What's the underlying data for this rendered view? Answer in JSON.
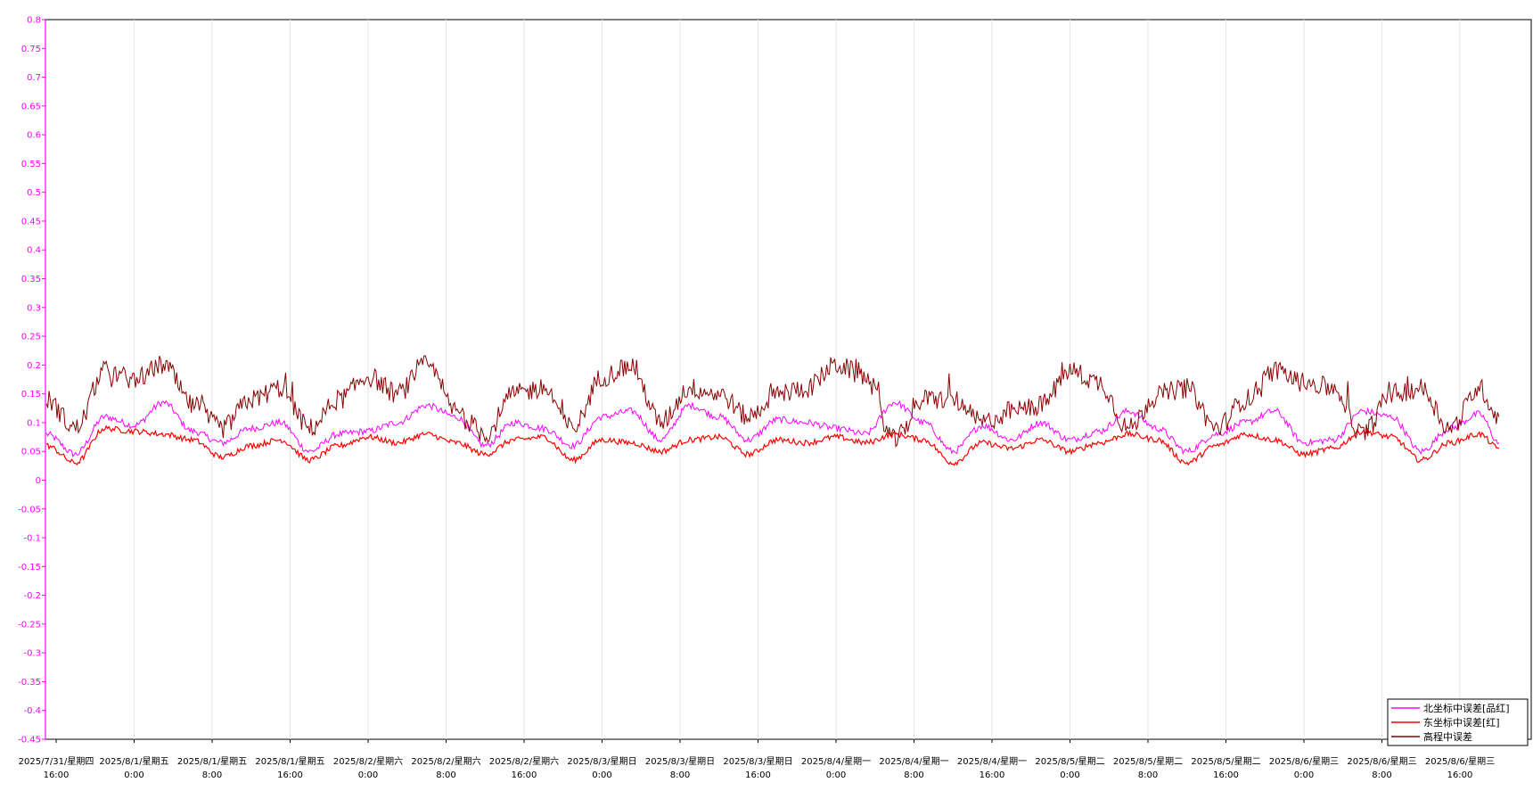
{
  "chart_data": {
    "type": "line",
    "ylim": [
      -0.45,
      0.8
    ],
    "yticks": [
      "0.8",
      "0.75",
      "0.7",
      "0.65",
      "0.6",
      "0.55",
      "0.5",
      "0.45",
      "0.4",
      "0.35",
      "0.3",
      "0.25",
      "0.2",
      "0.15",
      "0.1",
      "0.05",
      "0",
      "-0.05",
      "-0.1",
      "-0.15",
      "-0.2",
      "-0.25",
      "-0.3",
      "-0.35",
      "-0.4",
      "-0.45"
    ],
    "xticks": [
      {
        "date": "2025/7/31/星期四",
        "time": "16:00"
      },
      {
        "date": "2025/8/1/星期五",
        "time": "0:00"
      },
      {
        "date": "2025/8/1/星期五",
        "time": "8:00"
      },
      {
        "date": "2025/8/1/星期五",
        "time": "16:00"
      },
      {
        "date": "2025/8/2/星期六",
        "time": "0:00"
      },
      {
        "date": "2025/8/2/星期六",
        "time": "8:00"
      },
      {
        "date": "2025/8/2/星期六",
        "time": "16:00"
      },
      {
        "date": "2025/8/3/星期日",
        "time": "0:00"
      },
      {
        "date": "2025/8/3/星期日",
        "time": "8:00"
      },
      {
        "date": "2025/8/3/星期日",
        "time": "16:00"
      },
      {
        "date": "2025/8/4/星期一",
        "time": "0:00"
      },
      {
        "date": "2025/8/4/星期一",
        "time": "8:00"
      },
      {
        "date": "2025/8/4/星期一",
        "time": "16:00"
      },
      {
        "date": "2025/8/5/星期二",
        "time": "0:00"
      },
      {
        "date": "2025/8/5/星期二",
        "time": "8:00"
      },
      {
        "date": "2025/8/5/星期二",
        "time": "16:00"
      },
      {
        "date": "2025/8/6/星期三",
        "time": "0:00"
      },
      {
        "date": "2025/8/6/星期三",
        "time": "8:00"
      },
      {
        "date": "2025/8/6/星期三",
        "time": "16:00"
      }
    ],
    "grid": true,
    "legend_position": "bottom-right",
    "series": [
      {
        "name": "北坐标中误差[品红]",
        "color": "#ff00ff",
        "x": [
          "2025/7/31 15:00",
          "2025/7/31 18:00",
          "2025/7/31 21:00",
          "2025/8/1 0:00",
          "2025/8/1 3:00",
          "2025/8/1 6:00",
          "2025/8/1 9:00",
          "2025/8/1 12:00",
          "2025/8/1 15:00",
          "2025/8/1 18:00",
          "2025/8/1 21:00",
          "2025/8/2 0:00",
          "2025/8/2 3:00",
          "2025/8/2 6:00",
          "2025/8/2 9:00",
          "2025/8/2 12:00",
          "2025/8/2 15:00",
          "2025/8/2 18:00",
          "2025/8/2 21:00",
          "2025/8/3 0:00",
          "2025/8/3 3:00",
          "2025/8/3 6:00",
          "2025/8/3 9:00",
          "2025/8/3 12:00",
          "2025/8/3 15:00",
          "2025/8/3 18:00",
          "2025/8/3 21:00",
          "2025/8/4 0:00",
          "2025/8/4 3:00",
          "2025/8/4 6:00",
          "2025/8/4 9:00",
          "2025/8/4 12:00",
          "2025/8/4 15:00",
          "2025/8/4 18:00",
          "2025/8/4 21:00",
          "2025/8/5 0:00",
          "2025/8/5 3:00",
          "2025/8/5 6:00",
          "2025/8/5 9:00",
          "2025/8/5 12:00",
          "2025/8/5 15:00",
          "2025/8/5 18:00",
          "2025/8/5 21:00",
          "2025/8/6 0:00",
          "2025/8/6 3:00",
          "2025/8/6 6:00",
          "2025/8/6 9:00",
          "2025/8/6 12:00",
          "2025/8/6 15:00",
          "2025/8/6 18:00",
          "2025/8/6 20:00"
        ],
        "values": [
          0.08,
          0.045,
          0.11,
          0.095,
          0.135,
          0.085,
          0.065,
          0.09,
          0.1,
          0.05,
          0.08,
          0.085,
          0.1,
          0.13,
          0.11,
          0.06,
          0.1,
          0.09,
          0.06,
          0.11,
          0.12,
          0.07,
          0.13,
          0.11,
          0.07,
          0.105,
          0.1,
          0.09,
          0.08,
          0.135,
          0.1,
          0.05,
          0.095,
          0.07,
          0.1,
          0.07,
          0.085,
          0.12,
          0.09,
          0.05,
          0.08,
          0.1,
          0.12,
          0.065,
          0.07,
          0.12,
          0.11,
          0.05,
          0.09,
          0.115,
          0.065
        ]
      },
      {
        "name": "东坐标中误差[红]",
        "color": "#ff0000",
        "x": [
          "2025/7/31 15:00",
          "2025/7/31 18:00",
          "2025/7/31 21:00",
          "2025/8/1 0:00",
          "2025/8/1 3:00",
          "2025/8/1 6:00",
          "2025/8/1 9:00",
          "2025/8/1 12:00",
          "2025/8/1 15:00",
          "2025/8/1 18:00",
          "2025/8/1 21:00",
          "2025/8/2 0:00",
          "2025/8/2 3:00",
          "2025/8/2 6:00",
          "2025/8/2 9:00",
          "2025/8/2 12:00",
          "2025/8/2 15:00",
          "2025/8/2 18:00",
          "2025/8/2 21:00",
          "2025/8/3 0:00",
          "2025/8/3 3:00",
          "2025/8/3 6:00",
          "2025/8/3 9:00",
          "2025/8/3 12:00",
          "2025/8/3 15:00",
          "2025/8/3 18:00",
          "2025/8/3 21:00",
          "2025/8/4 0:00",
          "2025/8/4 3:00",
          "2025/8/4 6:00",
          "2025/8/4 9:00",
          "2025/8/4 12:00",
          "2025/8/4 15:00",
          "2025/8/4 18:00",
          "2025/8/4 21:00",
          "2025/8/5 0:00",
          "2025/8/5 3:00",
          "2025/8/5 6:00",
          "2025/8/5 9:00",
          "2025/8/5 12:00",
          "2025/8/5 15:00",
          "2025/8/5 18:00",
          "2025/8/5 21:00",
          "2025/8/6 0:00",
          "2025/8/6 3:00",
          "2025/8/6 6:00",
          "2025/8/6 9:00",
          "2025/8/6 12:00",
          "2025/8/6 15:00",
          "2025/8/6 18:00",
          "2025/8/6 20:00"
        ],
        "values": [
          0.06,
          0.03,
          0.09,
          0.085,
          0.08,
          0.07,
          0.04,
          0.06,
          0.07,
          0.035,
          0.06,
          0.075,
          0.065,
          0.08,
          0.065,
          0.045,
          0.07,
          0.075,
          0.035,
          0.07,
          0.065,
          0.05,
          0.07,
          0.075,
          0.045,
          0.07,
          0.065,
          0.075,
          0.065,
          0.08,
          0.07,
          0.03,
          0.065,
          0.055,
          0.07,
          0.05,
          0.065,
          0.08,
          0.07,
          0.03,
          0.06,
          0.08,
          0.07,
          0.045,
          0.055,
          0.085,
          0.075,
          0.035,
          0.065,
          0.08,
          0.055
        ]
      },
      {
        "name": "高程中误差",
        "color": "#8b0000",
        "x": [
          "2025/7/31 15:00",
          "2025/7/31 18:00",
          "2025/7/31 21:00",
          "2025/8/1 0:00",
          "2025/8/1 3:00",
          "2025/8/1 6:00",
          "2025/8/1 9:00",
          "2025/8/1 12:00",
          "2025/8/1 15:00",
          "2025/8/1 18:00",
          "2025/8/1 21:00",
          "2025/8/2 0:00",
          "2025/8/2 3:00",
          "2025/8/2 6:00",
          "2025/8/2 9:00",
          "2025/8/2 12:00",
          "2025/8/2 15:00",
          "2025/8/2 18:00",
          "2025/8/2 21:00",
          "2025/8/3 0:00",
          "2025/8/3 3:00",
          "2025/8/3 6:00",
          "2025/8/3 9:00",
          "2025/8/3 12:00",
          "2025/8/3 15:00",
          "2025/8/3 18:00",
          "2025/8/3 21:00",
          "2025/8/4 0:00",
          "2025/8/4 3:00",
          "2025/8/4 6:00",
          "2025/8/4 9:00",
          "2025/8/4 12:00",
          "2025/8/4 15:00",
          "2025/8/4 18:00",
          "2025/8/4 21:00",
          "2025/8/5 0:00",
          "2025/8/5 3:00",
          "2025/8/5 6:00",
          "2025/8/5 9:00",
          "2025/8/5 12:00",
          "2025/8/5 15:00",
          "2025/8/5 18:00",
          "2025/8/5 21:00",
          "2025/8/6 0:00",
          "2025/8/6 3:00",
          "2025/8/6 6:00",
          "2025/8/6 9:00",
          "2025/8/6 12:00",
          "2025/8/6 15:00",
          "2025/8/6 18:00",
          "2025/8/6 20:00"
        ],
        "values": [
          0.14,
          0.09,
          0.19,
          0.175,
          0.2,
          0.13,
          0.09,
          0.14,
          0.16,
          0.09,
          0.14,
          0.18,
          0.15,
          0.2,
          0.12,
          0.08,
          0.15,
          0.16,
          0.09,
          0.18,
          0.2,
          0.1,
          0.16,
          0.15,
          0.11,
          0.15,
          0.16,
          0.2,
          0.18,
          0.07,
          0.14,
          0.14,
          0.1,
          0.12,
          0.13,
          0.19,
          0.17,
          0.09,
          0.15,
          0.16,
          0.09,
          0.14,
          0.19,
          0.17,
          0.16,
          0.08,
          0.15,
          0.16,
          0.09,
          0.16,
          0.11
        ]
      }
    ]
  }
}
